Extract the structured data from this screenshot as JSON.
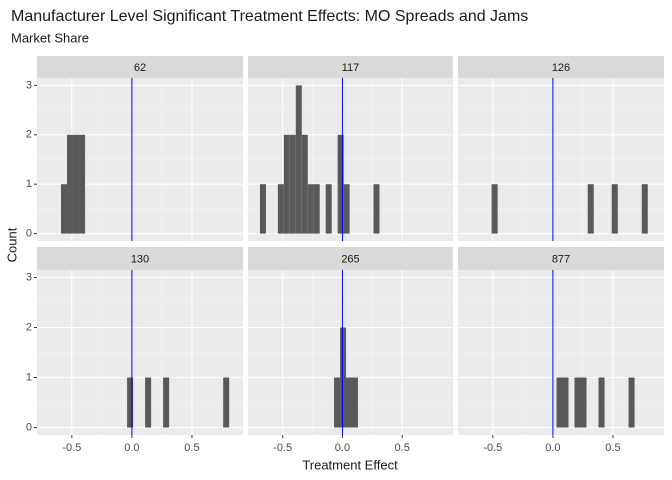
{
  "chart_data": {
    "type": "histogram",
    "title": "Manufacturer Level Significant Treatment Effects: MO Spreads and Jams",
    "subtitle": "Market Share",
    "xlabel": "Treatment Effect",
    "ylabel": "Count",
    "color": "#595959",
    "reference_line": {
      "value": 0,
      "color": "#0000ff"
    },
    "xlim": [
      -0.79,
      0.925
    ],
    "ylim": [
      -0.15,
      3.15
    ],
    "xticks": [
      {
        "value": -0.5,
        "label": "-0.5"
      },
      {
        "value": 0,
        "label": "0.0"
      },
      {
        "value": 0.5,
        "label": "0.5"
      }
    ],
    "yticks": [
      0,
      1,
      2,
      3
    ],
    "grid": true,
    "facets": [
      {
        "title": "62",
        "bins": [
          -0.59,
          -0.54,
          -0.49,
          -0.44,
          -0.39
        ],
        "counts": [
          1,
          2,
          2,
          2
        ]
      },
      {
        "title": "117",
        "bins": [
          -0.69,
          -0.64,
          -0.59,
          -0.54,
          -0.49,
          -0.44,
          -0.39,
          -0.34,
          -0.29,
          -0.24,
          -0.19,
          -0.14,
          -0.09,
          -0.04,
          0.01,
          0.06,
          0.11,
          0.16,
          0.21,
          0.26,
          0.31
        ],
        "counts": [
          1,
          0,
          0,
          1,
          2,
          2,
          3,
          2,
          1,
          1,
          0,
          1,
          0,
          2,
          1,
          0,
          0,
          0,
          0,
          1
        ]
      },
      {
        "title": "126",
        "bins": [
          -0.51,
          -0.46,
          -0.41,
          -0.36,
          -0.31,
          -0.26,
          -0.21,
          -0.16,
          -0.11,
          -0.06,
          -0.01,
          0.04,
          0.09,
          0.14,
          0.19,
          0.24,
          0.29,
          0.34,
          0.39,
          0.44,
          0.49,
          0.54,
          0.59,
          0.64,
          0.69,
          0.74,
          0.79
        ],
        "counts": [
          1,
          0,
          0,
          0,
          0,
          0,
          0,
          0,
          0,
          0,
          0,
          0,
          0,
          0,
          0,
          0,
          1,
          0,
          0,
          0,
          1,
          0,
          0,
          0,
          0,
          1
        ]
      },
      {
        "title": "130",
        "bins": [
          -0.04,
          0.01,
          0.06,
          0.11,
          0.16,
          0.21,
          0.26,
          0.31,
          0.36,
          0.41,
          0.46,
          0.51,
          0.56,
          0.61,
          0.66,
          0.71,
          0.76,
          0.81
        ],
        "counts": [
          1,
          0,
          0,
          1,
          0,
          0,
          1,
          0,
          0,
          0,
          0,
          0,
          0,
          0,
          0,
          0,
          1
        ]
      },
      {
        "title": "265",
        "bins": [
          -0.07,
          -0.02,
          0.03,
          0.08,
          0.13
        ],
        "counts": [
          1,
          2,
          1,
          1
        ]
      },
      {
        "title": "877",
        "bins": [
          0.03,
          0.08,
          0.13,
          0.18,
          0.23,
          0.28,
          0.33,
          0.38,
          0.43,
          0.48,
          0.53,
          0.58,
          0.63,
          0.68
        ],
        "counts": [
          1,
          1,
          0,
          1,
          1,
          0,
          0,
          1,
          0,
          0,
          0,
          0,
          1
        ]
      }
    ]
  }
}
